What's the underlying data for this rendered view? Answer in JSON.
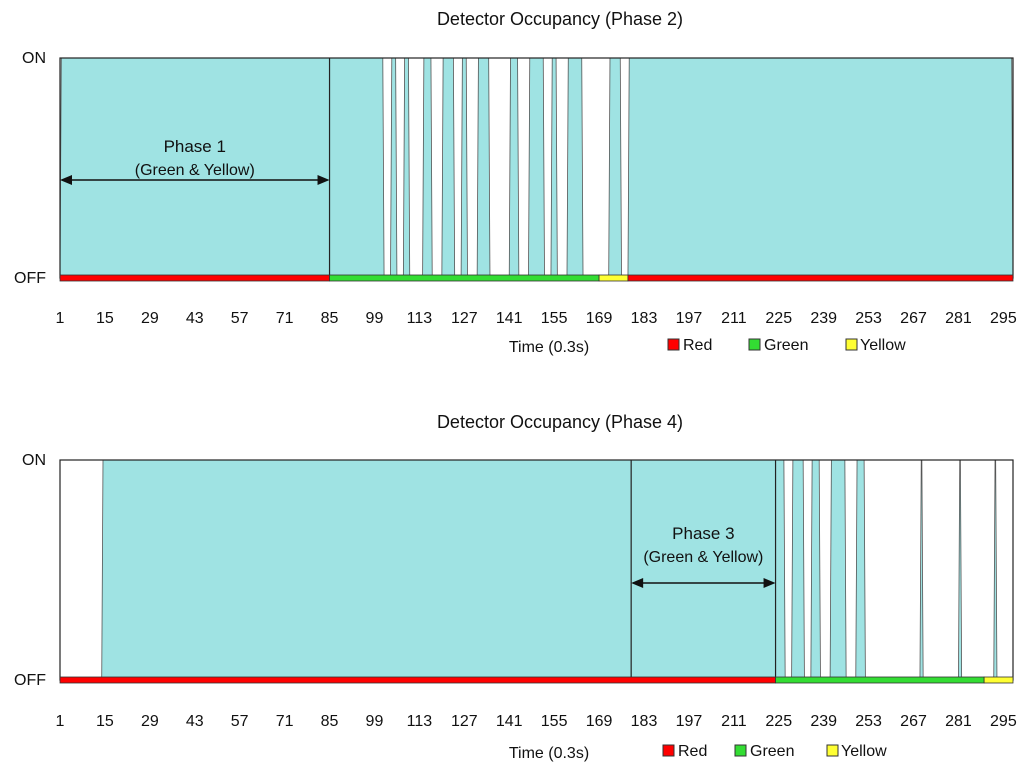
{
  "chart_data": [
    {
      "type": "area",
      "title": "Detector Occupancy  (Phase  2)",
      "xlabel": "Time (0.3s)",
      "ylabel": "",
      "y_categories": [
        "OFF",
        "ON"
      ],
      "x_ticks": [
        "1",
        "15",
        "29",
        "43",
        "57",
        "71",
        "85",
        "99",
        "113",
        "127",
        "141",
        "155",
        "169",
        "183",
        "197",
        "211",
        "225",
        "239",
        "253",
        "267",
        "281",
        "295"
      ],
      "xlim": [
        1,
        298
      ],
      "occupancy_color": "#9fe3e3",
      "occupancy_on_intervals": [
        [
          1,
          102
        ],
        [
          104,
          106
        ],
        [
          108,
          110
        ],
        [
          114,
          117
        ],
        [
          120,
          124
        ],
        [
          126,
          128
        ],
        [
          131,
          135
        ],
        [
          141,
          144
        ],
        [
          147,
          152
        ],
        [
          154,
          156
        ],
        [
          159,
          164
        ],
        [
          172,
          176
        ],
        [
          178,
          298
        ]
      ],
      "phase_line_x": [
        85
      ],
      "annotation": {
        "label_line1": "Phase 1",
        "label_line2": "(Green & Yellow)",
        "start": 1,
        "end": 85
      },
      "signal_segments": [
        {
          "state": "Red",
          "start": 1,
          "end": 85
        },
        {
          "state": "Green",
          "start": 85,
          "end": 169
        },
        {
          "state": "Yellow",
          "start": 169,
          "end": 178
        },
        {
          "state": "Red",
          "start": 178,
          "end": 298
        }
      ],
      "legend": [
        {
          "name": "Red",
          "color": "#ff0000"
        },
        {
          "name": "Green",
          "color": "#33dd33"
        },
        {
          "name": "Yellow",
          "color": "#ffff33"
        }
      ]
    },
    {
      "type": "area",
      "title": "Detector Occupancy  (Phase  4)",
      "xlabel": "Time (0.3s)",
      "ylabel": "",
      "y_categories": [
        "OFF",
        "ON"
      ],
      "x_ticks": [
        "1",
        "15",
        "29",
        "43",
        "57",
        "71",
        "85",
        "99",
        "113",
        "127",
        "141",
        "155",
        "169",
        "183",
        "197",
        "211",
        "225",
        "239",
        "253",
        "267",
        "281",
        "295"
      ],
      "xlim": [
        1,
        298
      ],
      "occupancy_color": "#9fe3e3",
      "occupancy_on_intervals": [
        [
          14,
          227
        ],
        [
          229,
          233
        ],
        [
          235,
          238
        ],
        [
          241,
          246
        ],
        [
          249,
          252
        ],
        [
          269,
          270
        ],
        [
          281,
          282
        ],
        [
          292,
          293
        ]
      ],
      "phase_line_x": [
        179,
        224
      ],
      "annotation": {
        "label_line1": "Phase 3",
        "label_line2": "(Green & Yellow)",
        "start": 179,
        "end": 224
      },
      "signal_segments": [
        {
          "state": "Red",
          "start": 1,
          "end": 224
        },
        {
          "state": "Green",
          "start": 224,
          "end": 289
        },
        {
          "state": "Yellow",
          "start": 289,
          "end": 298
        }
      ],
      "legend": [
        {
          "name": "Red",
          "color": "#ff0000"
        },
        {
          "name": "Green",
          "color": "#33dd33"
        },
        {
          "name": "Yellow",
          "color": "#ffff33"
        }
      ]
    }
  ]
}
